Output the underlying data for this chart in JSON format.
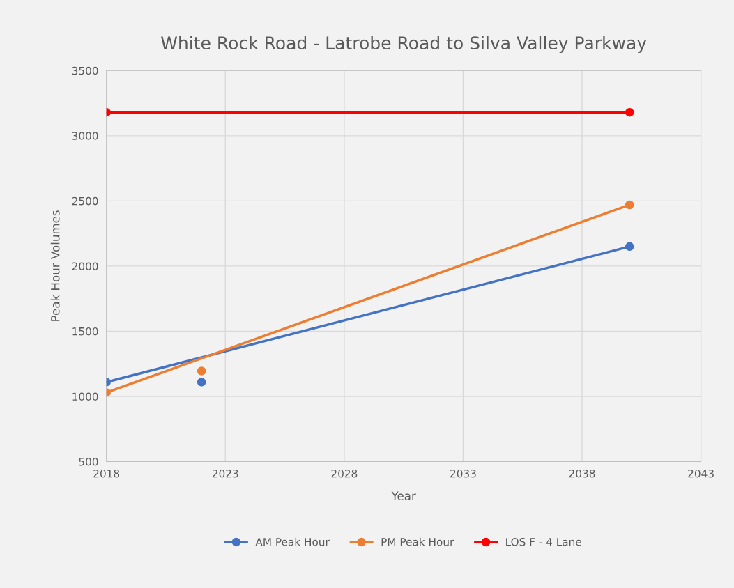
{
  "chart_data": {
    "type": "line",
    "title": "White Rock Road - Latrobe Road to Silva Valley Parkway",
    "xlabel": "Year",
    "ylabel": "Peak Hour Volumes",
    "xlim": [
      2018,
      2043
    ],
    "xticks": [
      2018,
      2023,
      2028,
      2033,
      2038,
      2043
    ],
    "ylim": [
      500,
      3500
    ],
    "yticks": [
      500,
      1000,
      1500,
      2000,
      2500,
      3000,
      3500
    ],
    "grid": true,
    "legend": "bottom",
    "marker": "circle",
    "line_style": "solid",
    "series": [
      {
        "name": "AM Peak Hour",
        "color": "#4472c4",
        "x": [
          2018,
          2040
        ],
        "values": [
          1110,
          2150
        ]
      },
      {
        "name": "PM Peak Hour",
        "color": "#ed7d31",
        "x": [
          2018,
          2040
        ],
        "values": [
          1030,
          2470
        ]
      },
      {
        "name": "LOS F - 4 Lane",
        "color": "#ff0000",
        "x": [
          2018,
          2040
        ],
        "values": [
          3180,
          3180
        ]
      },
      {
        "type": "scatter",
        "color": "#4472c4",
        "x": [
          2022
        ],
        "values": [
          1110
        ]
      },
      {
        "type": "scatter",
        "color": "#ed7d31",
        "x": [
          2022
        ],
        "values": [
          1195
        ]
      }
    ]
  }
}
